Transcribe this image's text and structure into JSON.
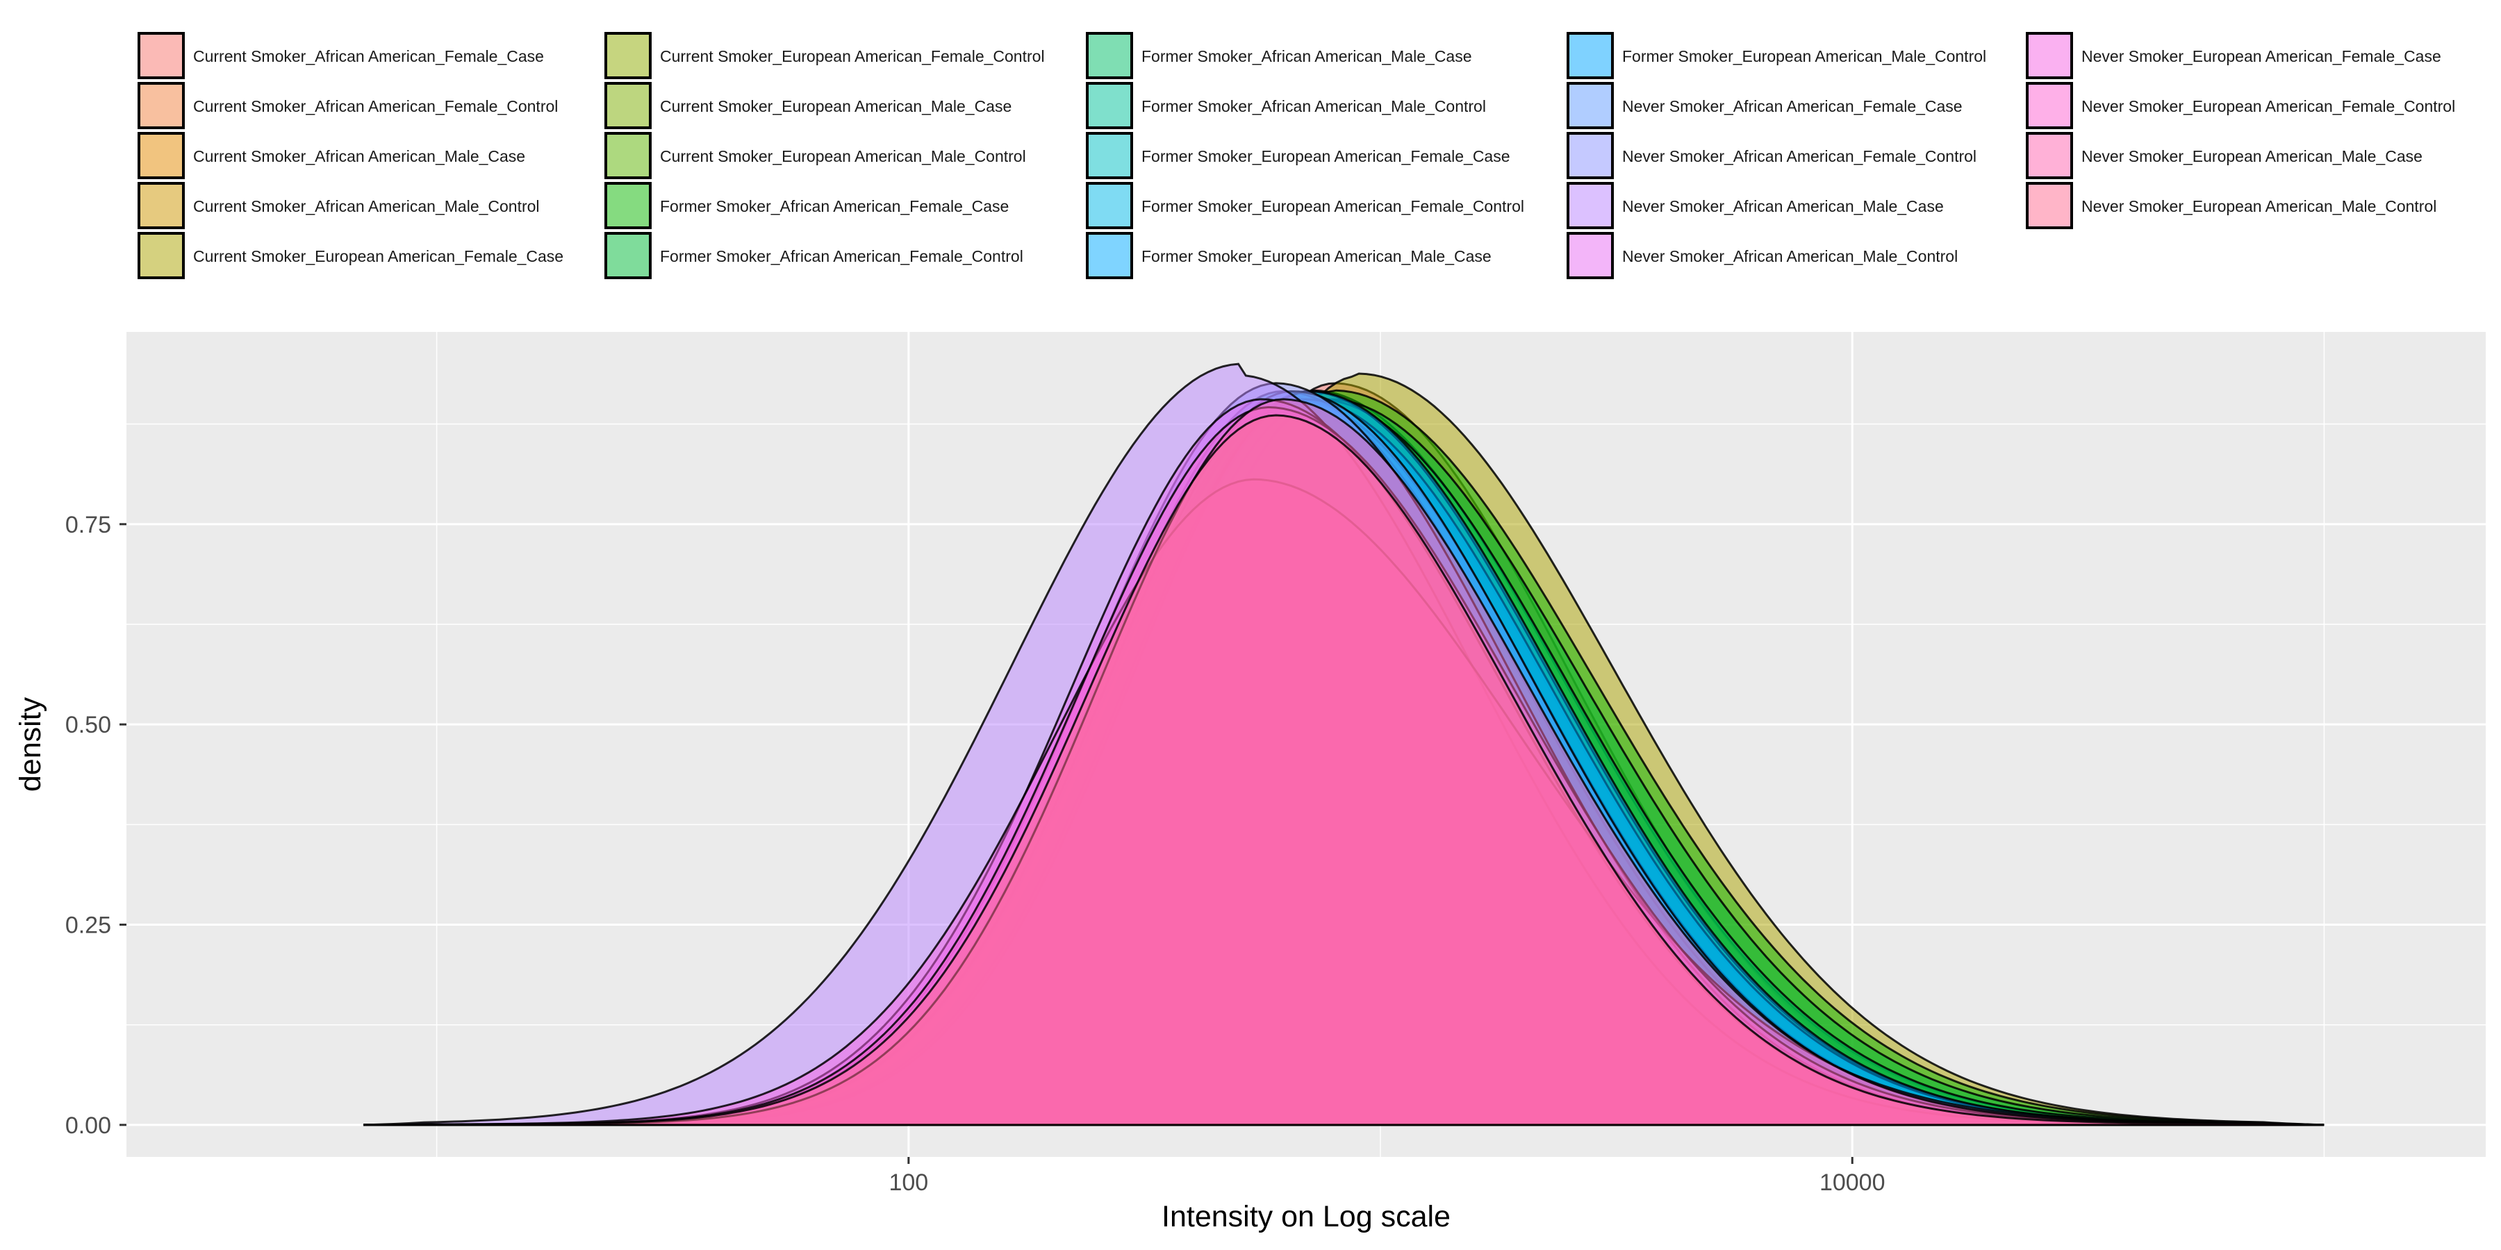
{
  "chart_data": {
    "type": "area",
    "xlabel": "Intensity on Log scale",
    "ylabel": "density",
    "x_scale": "log10",
    "xlim": [
      2.2,
      220000
    ],
    "ylim": [
      -0.04,
      0.99
    ],
    "x_ticks": [
      100,
      10000
    ],
    "x_tick_labels": [
      "100",
      "10000"
    ],
    "y_ticks": [
      0,
      0.25,
      0.5,
      0.75
    ],
    "y_tick_labels": [
      "0.00",
      "0.25",
      "0.50",
      "0.75"
    ],
    "grid": true,
    "legend_position": "top",
    "panel_background": "#ebebeb",
    "fill_opacity": 0.5,
    "series": [
      {
        "name": "Current Smoker_African American_Female_Case",
        "color": "#F8766D",
        "peak_x": 800,
        "peak_y": 0.92,
        "width_left": 0.37,
        "width_right": 0.5,
        "left_tail": 0.006,
        "right_tail": 0.006
      },
      {
        "name": "Current Smoker_African American_Female_Control",
        "color": "#F2813F",
        "peak_x": 700,
        "peak_y": 0.91,
        "width_left": 0.38,
        "width_right": 0.51,
        "left_tail": 0.006,
        "right_tail": 0.006
      },
      {
        "name": "Current Smoker_African American_Male_Case",
        "color": "#E38900",
        "peak_x": 750,
        "peak_y": 0.9,
        "width_left": 0.38,
        "width_right": 0.52,
        "left_tail": 0.006,
        "right_tail": 0.006
      },
      {
        "name": "Current Smoker_African American_Male_Control",
        "color": "#CD9600",
        "peak_x": 650,
        "peak_y": 0.89,
        "width_left": 0.39,
        "width_right": 0.52,
        "left_tail": 0.006,
        "right_tail": 0.006
      },
      {
        "name": "Current Smoker_European American_Female_Case",
        "color": "#ABA300",
        "peak_x": 900,
        "peak_y": 0.93,
        "width_left": 0.36,
        "width_right": 0.54,
        "left_tail": 0.005,
        "right_tail": 0.008
      },
      {
        "name": "Current Smoker_European American_Female_Control",
        "color": "#8DAB00",
        "peak_x": 720,
        "peak_y": 0.91,
        "width_left": 0.38,
        "width_right": 0.53,
        "left_tail": 0.006,
        "right_tail": 0.007
      },
      {
        "name": "Current Smoker_European American_Male_Case",
        "color": "#7CAE00",
        "peak_x": 680,
        "peak_y": 0.9,
        "width_left": 0.38,
        "width_right": 0.52,
        "left_tail": 0.006,
        "right_tail": 0.006
      },
      {
        "name": "Current Smoker_European American_Male_Control",
        "color": "#5BB300",
        "peak_x": 640,
        "peak_y": 0.89,
        "width_left": 0.39,
        "width_right": 0.51,
        "left_tail": 0.006,
        "right_tail": 0.006
      },
      {
        "name": "Former Smoker_African American_Female_Case",
        "color": "#0CB702",
        "peak_x": 800,
        "peak_y": 0.91,
        "width_left": 0.37,
        "width_right": 0.55,
        "left_tail": 0.006,
        "right_tail": 0.007
      },
      {
        "name": "Former Smoker_African American_Female_Control",
        "color": "#00BA38",
        "peak_x": 780,
        "peak_y": 0.9,
        "width_left": 0.37,
        "width_right": 0.54,
        "left_tail": 0.006,
        "right_tail": 0.006
      },
      {
        "name": "Former Smoker_African American_Male_Case",
        "color": "#00BE67",
        "peak_x": 740,
        "peak_y": 0.9,
        "width_left": 0.38,
        "width_right": 0.53,
        "left_tail": 0.006,
        "right_tail": 0.006
      },
      {
        "name": "Former Smoker_African American_Male_Control",
        "color": "#00C19A",
        "peak_x": 700,
        "peak_y": 0.91,
        "width_left": 0.38,
        "width_right": 0.52,
        "left_tail": 0.006,
        "right_tail": 0.006
      },
      {
        "name": "Former Smoker_European American_Female_Case",
        "color": "#00BFC4",
        "peak_x": 660,
        "peak_y": 0.9,
        "width_left": 0.38,
        "width_right": 0.51,
        "left_tail": 0.006,
        "right_tail": 0.006
      },
      {
        "name": "Former Smoker_European American_Female_Control",
        "color": "#00B8E7",
        "peak_x": 620,
        "peak_y": 0.91,
        "width_left": 0.39,
        "width_right": 0.51,
        "left_tail": 0.006,
        "right_tail": 0.006
      },
      {
        "name": "Former Smoker_European American_Male_Case",
        "color": "#00A9FF",
        "peak_x": 690,
        "peak_y": 0.9,
        "width_left": 0.38,
        "width_right": 0.52,
        "left_tail": 0.006,
        "right_tail": 0.006
      },
      {
        "name": "Former Smoker_European American_Male_Control",
        "color": "#00A5FF",
        "peak_x": 710,
        "peak_y": 0.91,
        "width_left": 0.38,
        "width_right": 0.52,
        "left_tail": 0.006,
        "right_tail": 0.006
      },
      {
        "name": "Never Smoker_African American_Female_Case",
        "color": "#619CFF",
        "peak_x": 650,
        "peak_y": 0.91,
        "width_left": 0.39,
        "width_right": 0.51,
        "left_tail": 0.006,
        "right_tail": 0.006
      },
      {
        "name": "Never Smoker_African American_Female_Control",
        "color": "#8B93FF",
        "peak_x": 600,
        "peak_y": 0.92,
        "width_left": 0.4,
        "width_right": 0.5,
        "left_tail": 0.006,
        "right_tail": 0.006
      },
      {
        "name": "Never Smoker_African American_Male_Case",
        "color": "#B983FF",
        "peak_x": 500,
        "peak_y": 0.93,
        "width_left": 0.48,
        "width_right": 0.5,
        "left_tail": 0.02,
        "right_tail": 0.006
      },
      {
        "name": "Never Smoker_African American_Male_Control",
        "color": "#E76BF3",
        "peak_x": 560,
        "peak_y": 0.9,
        "width_left": 0.4,
        "width_right": 0.51,
        "left_tail": 0.006,
        "right_tail": 0.006
      },
      {
        "name": "Never Smoker_European American_Female_Case",
        "color": "#F564E3",
        "peak_x": 540,
        "peak_y": 0.8,
        "width_left": 0.42,
        "width_right": 0.56,
        "left_tail": 0.006,
        "right_tail": 0.006
      },
      {
        "name": "Never Smoker_European American_Female_Control",
        "color": "#FD61D1",
        "peak_x": 580,
        "peak_y": 0.89,
        "width_left": 0.4,
        "width_right": 0.52,
        "left_tail": 0.006,
        "right_tail": 0.006
      },
      {
        "name": "Never Smoker_European American_Male_Case",
        "color": "#FF64B0",
        "peak_x": 620,
        "peak_y": 0.9,
        "width_left": 0.39,
        "width_right": 0.52,
        "left_tail": 0.006,
        "right_tail": 0.006
      },
      {
        "name": "Never Smoker_European American_Male_Control",
        "color": "#FF6C91",
        "peak_x": 600,
        "peak_y": 0.88,
        "width_left": 0.4,
        "width_right": 0.5,
        "left_tail": 0.006,
        "right_tail": 0.006
      }
    ]
  }
}
